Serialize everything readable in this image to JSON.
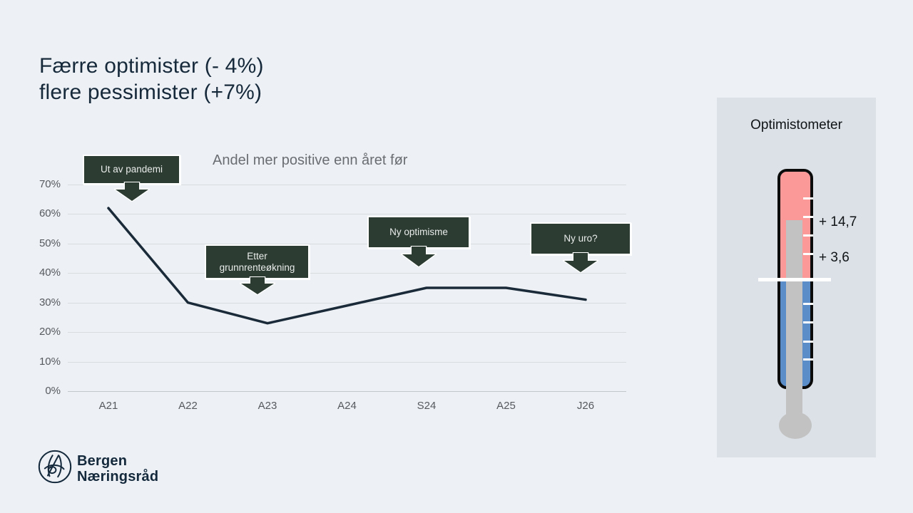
{
  "slide": {
    "title_line1": "Færre optimister (- 4%)",
    "title_line2": "flere pessimister (+7%)"
  },
  "chart_data": {
    "type": "line",
    "title": "Andel mer positive enn året før",
    "categories": [
      "A21",
      "A22",
      "A23",
      "A24",
      "S24",
      "A25",
      "J26"
    ],
    "series": [
      {
        "name": "Andel mer positive enn året før",
        "values": [
          62,
          30,
          23,
          29,
          35,
          35,
          31
        ]
      }
    ],
    "unit": "%",
    "ylim": [
      0,
      70
    ],
    "ytick_step": 10,
    "grid": true,
    "legend": "none",
    "line_color": "#1b2a38",
    "annotations": [
      {
        "text": "Ut av pandemi",
        "target": "A21"
      },
      {
        "text": "Etter grunnrenteøkning",
        "target": "A23"
      },
      {
        "text": "Ny optimisme",
        "target": "S24"
      },
      {
        "text": "Ny uro?",
        "target": "J26"
      }
    ]
  },
  "optimistometer": {
    "title": "Optimistometer",
    "readings": [
      {
        "label": "+ 14,7"
      },
      {
        "label": "+ 3,6"
      }
    ],
    "colors": {
      "warm": "#fb9898",
      "cold": "#5b8dc8",
      "column": "#c2c2c2",
      "panel": "#dbe1e7"
    }
  },
  "footer": {
    "org_line1": "Bergen",
    "org_line2": "Næringsråd"
  },
  "colors": {
    "background": "#edf1f5",
    "title_text": "#16293b",
    "muted_text": "#6a6e72",
    "callout_bg": "#2c3c33",
    "line": "#1b2a38"
  }
}
